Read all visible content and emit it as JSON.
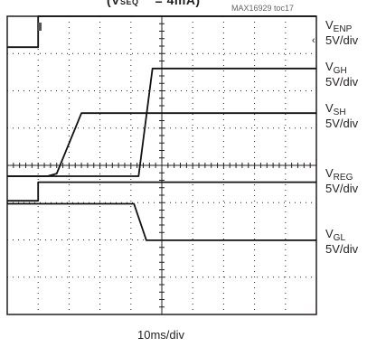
{
  "header": {
    "title": "(V",
    "title_tail": "= 4mA)",
    "figure_id": "MAX16929 toc17"
  },
  "channels": [
    {
      "symbol": "V",
      "sub": "ENP",
      "scale": "5V/div"
    },
    {
      "symbol": "V",
      "sub": "GH",
      "scale": "5V/div"
    },
    {
      "symbol": "V",
      "sub": "SH",
      "scale": "5V/div"
    },
    {
      "symbol": "V",
      "sub": "REG",
      "scale": "5V/div"
    },
    {
      "symbol": "V",
      "sub": "GL",
      "scale": "5V/div"
    }
  ],
  "timebase": "10ms/div",
  "chart_data": {
    "type": "line",
    "grid": true,
    "x_divisions": 10,
    "y_divisions": 8,
    "xlim": [
      0,
      10
    ],
    "ylim": [
      0,
      8
    ],
    "series": [
      {
        "name": "VENP",
        "x": [
          0,
          1.0,
          1.0,
          10
        ],
        "y": [
          7.17,
          7.17,
          8.0,
          8.0
        ]
      },
      {
        "name": "VGH",
        "x": [
          0,
          4.25,
          4.7,
          10
        ],
        "y": [
          3.71,
          3.71,
          6.6,
          6.6
        ]
      },
      {
        "name": "VSH",
        "x": [
          0,
          1.3,
          1.6,
          2.4,
          10
        ],
        "y": [
          3.71,
          3.71,
          3.78,
          5.4,
          5.4
        ]
      },
      {
        "name": "VREG",
        "x": [
          0,
          1.0,
          1.0,
          10
        ],
        "y": [
          3.05,
          3.05,
          3.55,
          3.55
        ]
      },
      {
        "name": "VGL",
        "x": [
          0,
          4.1,
          4.5,
          10
        ],
        "y": [
          2.97,
          2.97,
          1.99,
          1.99
        ]
      }
    ]
  }
}
